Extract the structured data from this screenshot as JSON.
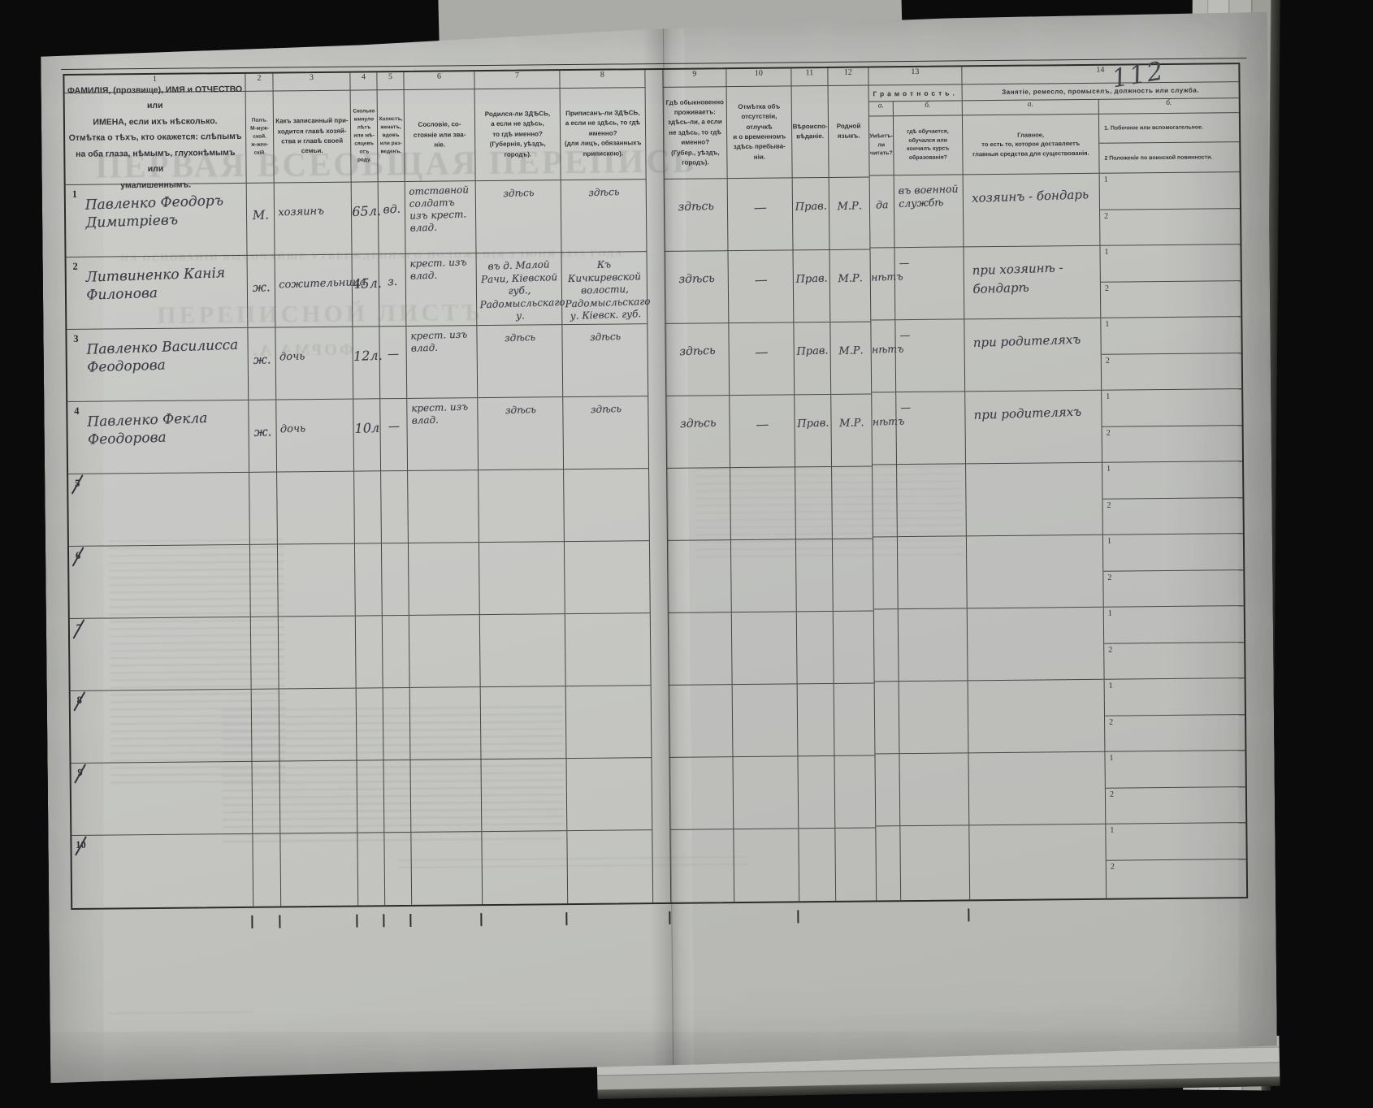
{
  "page": {
    "page_number": "112"
  },
  "ghost_text": {
    "title": "ПЕРВАЯ ВСЕОБЩАЯ ПЕРЕПИСЬ",
    "law_line": "НА ОСНОВАНІИ ВЫСОЧАЙШЕ УТВЕРЖДЕННАГО ПОЛОЖЕНІЯ 5 ІЮНЯ 1895 ГОДА",
    "subtitle": "ПЕРЕПИСНОЙ ЛИСТЪ",
    "form": "ФОРМА А."
  },
  "cols": [
    {
      "n": "1",
      "head": "ФАМИЛІЯ, (прозвище), ИМЯ и ОТЧЕСТВО или\nИМЕНА, если ихъ нѣсколько.\nОтмѣтка о тѣхъ, кто окажется: слѣпымъ\nна оба глаза, нѣмымъ, глухонѣмымъ или\nумалишеннымъ."
    },
    {
      "n": "2",
      "head": "Полъ.\nМ-муж-\nской.\nж-жен-\nскій."
    },
    {
      "n": "3",
      "head": "Какъ записанный при-\nходится главѣ хозяй-\nства и главѣ своей\nсемьи."
    },
    {
      "n": "4",
      "head": "Сколько\nминуло\nлѣтъ\nили мѣ-\nсяцевъ\nотъ роду."
    },
    {
      "n": "5",
      "head": "Холостъ,\nженатъ,\nвдовъ\nили раз-\nведенъ."
    },
    {
      "n": "6",
      "head": "Сословіе, со-\nстояніе или зва-\nніе."
    },
    {
      "n": "7",
      "head": "Родился-ли ЗДѢСЬ,\nа если не здѣсь,\nто гдѣ именно?\n(Губернія, уѣздъ, городъ)."
    },
    {
      "n": "8",
      "head": "Приписанъ-ли ЗДѢСЬ,\nа если не здѣсь, то гдѣ\nименно?\n(для лицъ, обязанныхъ\nприпискою)."
    },
    {
      "n": "9",
      "head": "Гдѣ обыкновенно\nпроживаетъ:\nздѣсь-ли, а если\nне здѣсь, то гдѣ\nименно?\n(Губер., уѣздъ, городъ)."
    },
    {
      "n": "10",
      "head": "Отмѣтка объ\nотсутствіи, отлучкѣ\nи о временномъ\nздѣсь пребыва-\nніи."
    },
    {
      "n": "11",
      "head": "Вѣроиспо-\nвѣданіе."
    },
    {
      "n": "12",
      "head": "Родной\nязыкъ."
    }
  ],
  "col13": {
    "n": "13",
    "title": "Грамотность.",
    "a_label": "а.",
    "b_label": "б.",
    "a_head": "Умѣетъ-\nли\nчитать?",
    "b_head": "гдѣ обучается,\nобучался или\nкончилъ курсъ\nобразованія?"
  },
  "col14": {
    "n": "14",
    "title": "Занятіе, ремесло, промыселъ, должность или служба.",
    "a_label": "а.",
    "b_label": "б.",
    "a_head": "Главное,\nто есть то, которое доставляетъ\nглавныя средства для существованія.",
    "b_item1": "1.  Побочное или вспомогательное.",
    "b_item2": "2   Положеніе по воинской повинности."
  },
  "side_row_labels": [
    "1",
    "2"
  ],
  "rows": [
    {
      "num": "1",
      "crossed": false,
      "name": "Павленко Феодоръ Димитріевъ",
      "sex": "М.",
      "relation": "хозяинъ",
      "age": "65л.",
      "marital": "вд.",
      "estate": "отставной солдатъ изъ крест. влад.",
      "born": "здѣсь",
      "registered": "здѣсь",
      "lives": "здѣсь",
      "absence": "—",
      "religion": "Прав.",
      "language": "М.Р.",
      "reads": "да",
      "education": "въ военной службѣ",
      "occupation": "хозяинъ - бондарь",
      "side1": "",
      "side2": ""
    },
    {
      "num": "2",
      "crossed": false,
      "name": "Литвиненко Канія Филонова",
      "sex": "ж.",
      "relation": "сожительница",
      "age": "45л.",
      "marital": "з.",
      "estate": "крест. изъ влад.",
      "born": "въ д. Малой Рачи, Кіевской губ., Радомысльскаго у.",
      "registered": "Къ Кичкиревской волости, Радомысльскаго у. Кіевск. губ.",
      "lives": "здѣсь",
      "absence": "—",
      "religion": "Прав.",
      "language": "М.Р.",
      "reads": "нѣтъ",
      "education": "—",
      "occupation": "при хозяинѣ - бондарѣ",
      "side1": "",
      "side2": ""
    },
    {
      "num": "3",
      "crossed": false,
      "name": "Павленко Василисса Феодорова",
      "sex": "ж.",
      "relation": "дочь",
      "age": "12л.",
      "marital": "—",
      "estate": "крест. изъ влад.",
      "born": "здѣсь",
      "registered": "здѣсь",
      "lives": "здѣсь",
      "absence": "—",
      "religion": "Прав.",
      "language": "М.Р.",
      "reads": "нѣтъ",
      "education": "—",
      "occupation": "при родителяхъ",
      "side1": "",
      "side2": ""
    },
    {
      "num": "4",
      "crossed": false,
      "name": "Павленко Фекла Феодорова",
      "sex": "ж.",
      "relation": "дочь",
      "age": "10л",
      "marital": "—",
      "estate": "крест. изъ влад.",
      "born": "здѣсь",
      "registered": "здѣсь",
      "lives": "здѣсь",
      "absence": "—",
      "religion": "Прав.",
      "language": "М.Р.",
      "reads": "нѣтъ",
      "education": "—",
      "occupation": "при родителяхъ",
      "side1": "",
      "side2": ""
    },
    {
      "num": "5",
      "crossed": true,
      "name": "",
      "sex": "",
      "relation": "",
      "age": "",
      "marital": "",
      "estate": "",
      "born": "",
      "registered": "",
      "lives": "",
      "absence": "",
      "religion": "",
      "language": "",
      "reads": "",
      "education": "",
      "occupation": "",
      "side1": "",
      "side2": ""
    },
    {
      "num": "6",
      "crossed": true,
      "name": "",
      "sex": "",
      "relation": "",
      "age": "",
      "marital": "",
      "estate": "",
      "born": "",
      "registered": "",
      "lives": "",
      "absence": "",
      "religion": "",
      "language": "",
      "reads": "",
      "education": "",
      "occupation": "",
      "side1": "",
      "side2": ""
    },
    {
      "num": "7",
      "crossed": true,
      "name": "",
      "sex": "",
      "relation": "",
      "age": "",
      "marital": "",
      "estate": "",
      "born": "",
      "registered": "",
      "lives": "",
      "absence": "",
      "religion": "",
      "language": "",
      "reads": "",
      "education": "",
      "occupation": "",
      "side1": "",
      "side2": ""
    },
    {
      "num": "8",
      "crossed": true,
      "name": "",
      "sex": "",
      "relation": "",
      "age": "",
      "marital": "",
      "estate": "",
      "born": "",
      "registered": "",
      "lives": "",
      "absence": "",
      "religion": "",
      "language": "",
      "reads": "",
      "education": "",
      "occupation": "",
      "side1": "",
      "side2": ""
    },
    {
      "num": "9",
      "crossed": true,
      "name": "",
      "sex": "",
      "relation": "",
      "age": "",
      "marital": "",
      "estate": "",
      "born": "",
      "registered": "",
      "lives": "",
      "absence": "",
      "religion": "",
      "language": "",
      "reads": "",
      "education": "",
      "occupation": "",
      "side1": "",
      "side2": ""
    },
    {
      "num": "10",
      "crossed": true,
      "name": "",
      "sex": "",
      "relation": "",
      "age": "",
      "marital": "",
      "estate": "",
      "born": "",
      "registered": "",
      "lives": "",
      "absence": "",
      "religion": "",
      "language": "",
      "reads": "",
      "education": "",
      "occupation": "",
      "side1": "",
      "side2": ""
    }
  ]
}
